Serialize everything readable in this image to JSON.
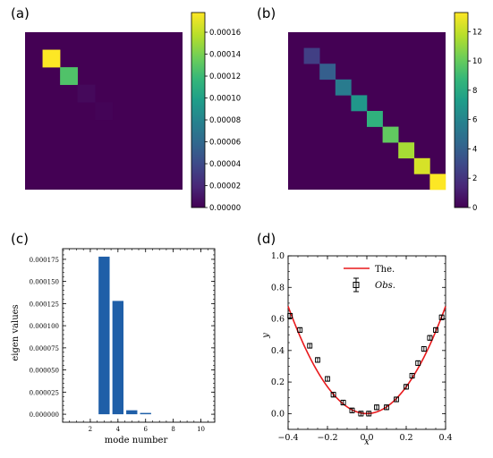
{
  "chart_data": [
    {
      "panel": "(a)",
      "type": "heatmap",
      "grid_size": 9,
      "diagonal_values": [
        0,
        0.000178,
        0.000128,
        4e-06,
        1.5e-06,
        0,
        0,
        0,
        0
      ],
      "colorbar": {
        "min": 0,
        "max": 0.000178,
        "ticks": [
          0,
          2e-05,
          4e-05,
          6e-05,
          8e-05,
          0.0001,
          0.00012,
          0.00014,
          0.00016
        ],
        "tick_labels": [
          "0.00000",
          "0.00002",
          "0.00004",
          "0.00006",
          "0.00008",
          "0.00010",
          "0.00012",
          "0.00014",
          "0.00016"
        ]
      }
    },
    {
      "panel": "(b)",
      "type": "heatmap",
      "grid_size": 10,
      "diagonal_values": [
        0,
        2.5,
        4.0,
        5.5,
        7.0,
        8.5,
        10.0,
        11.5,
        12.5,
        13.3
      ],
      "colorbar": {
        "min": 0,
        "max": 13.3,
        "ticks": [
          0,
          2,
          4,
          6,
          8,
          10,
          12
        ],
        "tick_labels": [
          "0",
          "2",
          "4",
          "6",
          "8",
          "10",
          "12"
        ]
      }
    },
    {
      "panel": "(c)",
      "type": "bar",
      "categories": [
        1,
        2,
        3,
        4,
        5,
        6,
        7,
        8,
        9,
        10
      ],
      "values": [
        0,
        0,
        0.000178,
        0.000128,
        4.5e-06,
        1.5e-06,
        0,
        0,
        0,
        0
      ],
      "xlabel": "mode number",
      "ylabel": "eigen values",
      "xlim": [
        0,
        11
      ],
      "ylim": [
        -9e-06,
        0.000187
      ],
      "xticks": [
        2,
        4,
        6,
        8,
        10
      ],
      "xtick_labels": [
        "2",
        "4",
        "6",
        "8",
        "10"
      ],
      "yticks": [
        0,
        2.5e-05,
        5e-05,
        7.5e-05,
        0.0001,
        0.000125,
        0.00015,
        0.000175
      ],
      "ytick_labels": [
        "0.000000",
        "0.000025",
        "0.000050",
        "0.000075",
        "0.000100",
        "0.000125",
        "0.000150",
        "0.000175"
      ],
      "bar_color": "#1f5fa8"
    },
    {
      "panel": "(d)",
      "type": "line+scatter",
      "xlabel": "x",
      "ylabel": "y",
      "xlim": [
        -0.4,
        0.4
      ],
      "ylim": [
        -0.1,
        1.0
      ],
      "xticks": [
        -0.4,
        -0.2,
        0.0,
        0.2,
        0.4
      ],
      "xtick_labels": [
        "−0.4",
        "−0.2",
        "0.0",
        "0.2",
        "0.4"
      ],
      "yticks": [
        0.0,
        0.2,
        0.4,
        0.6,
        0.8,
        1.0
      ],
      "ytick_labels": [
        "0.0",
        "0.2",
        "0.4",
        "0.6",
        "0.8",
        "1.0"
      ],
      "series": [
        {
          "name": "The.",
          "kind": "line",
          "color": "#e8191c",
          "function": "y = 4.25*x^2"
        },
        {
          "name": "Obs.",
          "kind": "errorbar",
          "color": "#000000",
          "x": [
            -0.39,
            -0.34,
            -0.29,
            -0.25,
            -0.2,
            -0.17,
            -0.12,
            -0.075,
            -0.03,
            0.01,
            0.05,
            0.1,
            0.15,
            0.2,
            0.23,
            0.26,
            0.29,
            0.32,
            0.35,
            0.38
          ],
          "y": [
            0.62,
            0.53,
            0.43,
            0.34,
            0.22,
            0.12,
            0.07,
            0.02,
            0.0,
            0.0,
            0.04,
            0.04,
            0.09,
            0.17,
            0.24,
            0.32,
            0.41,
            0.48,
            0.53,
            0.61
          ],
          "yerr": 0.015
        }
      ],
      "legend_placement": "top-center"
    }
  ],
  "labels": {
    "a": "(a)",
    "b": "(b)",
    "c": "(c)",
    "d": "(d)",
    "c_xlabel": "mode number",
    "c_ylabel": "eigen values",
    "d_xlabel": "x",
    "d_ylabel": "y",
    "legend_line": "The.",
    "legend_obs": "Obs."
  },
  "colors": {
    "viridis_stops": [
      "#440154",
      "#482878",
      "#3e4989",
      "#31688e",
      "#26828e",
      "#1f9e89",
      "#35b779",
      "#6ece58",
      "#b5de2b",
      "#fde725"
    ]
  }
}
